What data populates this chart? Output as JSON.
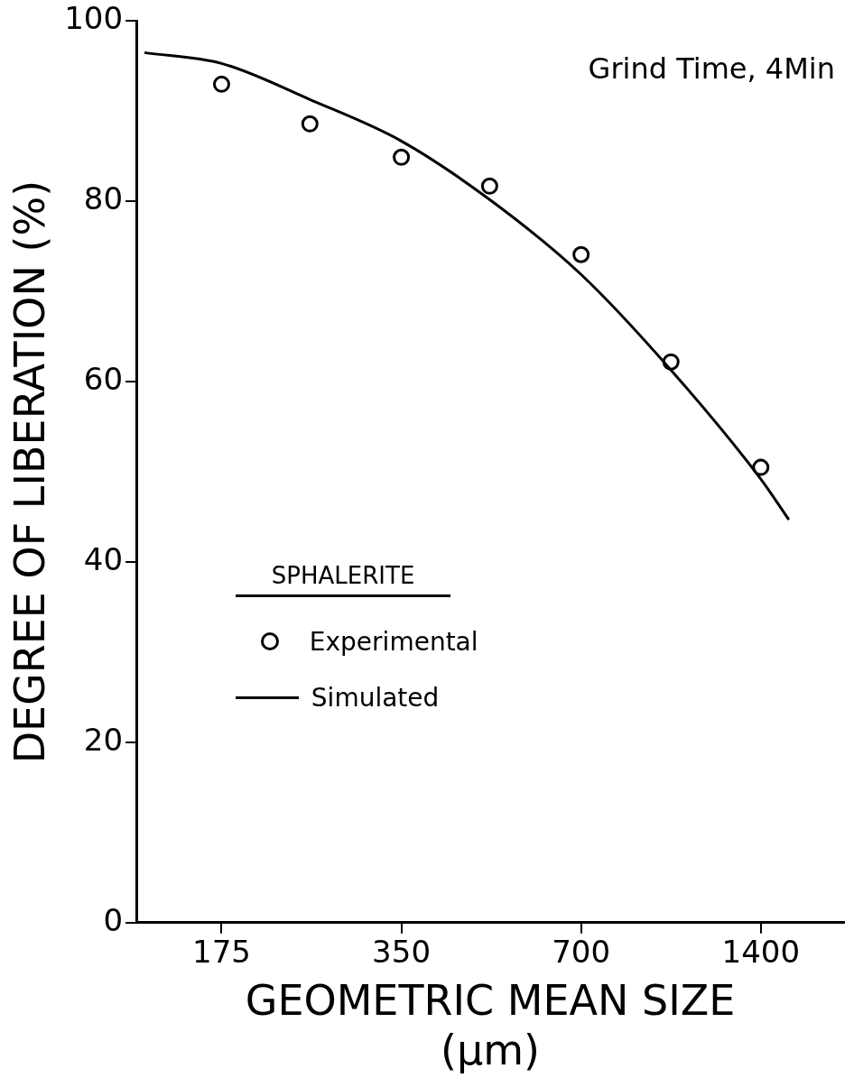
{
  "chart_data": {
    "type": "scatter",
    "xlabel": "GEOMETRIC MEAN SIZE\n(μm)",
    "ylabel": "DEGREE OF LIBERATION (%)",
    "legend_title": "SPHALERITE",
    "annotations": [
      "Grind Time, 4Min"
    ],
    "log": "x",
    "xlim": [
      126,
      1930
    ],
    "xticks": [
      175,
      350,
      700,
      1400
    ],
    "ylim": [
      0,
      100
    ],
    "yticks": [
      0,
      20,
      40,
      60,
      80,
      100
    ],
    "grid": false,
    "legend": "center left",
    "series": [
      {
        "name": "Experimental",
        "type": "scatter",
        "marker": "circle",
        "color": "#000000",
        "x": [
          175,
          246,
          350,
          492,
          700,
          990,
          1400
        ],
        "values": [
          93.0,
          88.6,
          84.9,
          81.7,
          74.1,
          62.2,
          50.5
        ]
      },
      {
        "name": "Simulated",
        "type": "line",
        "marker": "none",
        "line_style": "solid",
        "color": "#000000",
        "x": [
          130,
          175,
          246,
          350,
          492,
          700,
          990,
          1400,
          1560
        ],
        "values": [
          96.5,
          95.3,
          91.3,
          86.7,
          80.2,
          71.9,
          61.3,
          49.2,
          44.7
        ]
      }
    ]
  }
}
